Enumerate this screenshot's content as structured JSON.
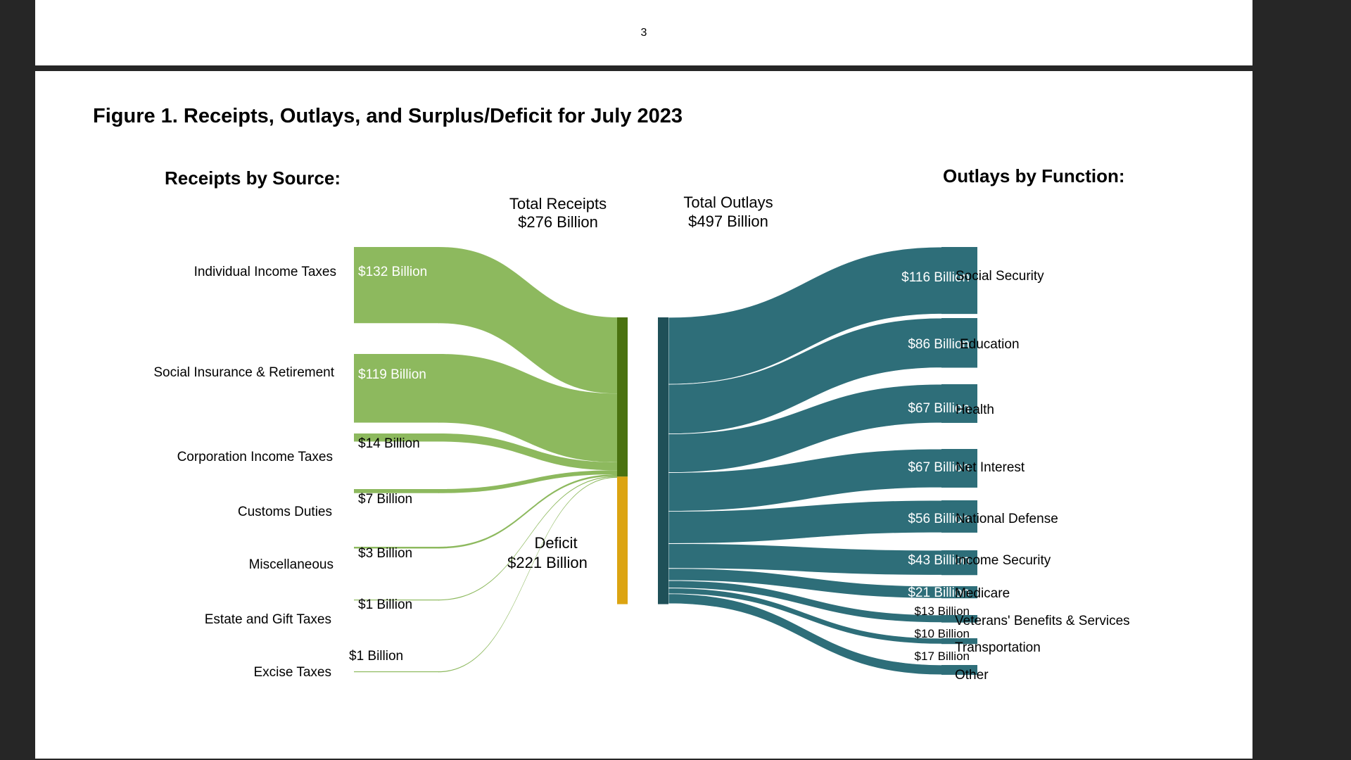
{
  "page": {
    "number": "3"
  },
  "figure": {
    "title": "Figure 1. Receipts, Outlays, and Surplus/Deficit for July 2023"
  },
  "chart_data": {
    "type": "sankey",
    "unit": "$ Billion",
    "receipts_heading": "Receipts by Source:",
    "outlays_heading": "Outlays by Function:",
    "total_receipts": {
      "label": "Total Receipts",
      "value_label": "$276 Billion",
      "value": 276
    },
    "total_outlays": {
      "label": "Total Outlays",
      "value_label": "$497 Billion",
      "value": 497
    },
    "deficit": {
      "label": "Deficit",
      "value_label": "$221 Billion",
      "value": 221
    },
    "receipts": [
      {
        "name": "Individual Income Taxes",
        "value": 132,
        "value_label": "$132 Billion"
      },
      {
        "name": "Social Insurance & Retirement",
        "value": 119,
        "value_label": "$119 Billion"
      },
      {
        "name": "Corporation Income Taxes",
        "value": 14,
        "value_label": "$14 Billion"
      },
      {
        "name": "Customs Duties",
        "value": 7,
        "value_label": "$7 Billion"
      },
      {
        "name": "Miscellaneous",
        "value": 3,
        "value_label": "$3 Billion"
      },
      {
        "name": "Estate and Gift Taxes",
        "value": 1,
        "value_label": "$1 Billion"
      },
      {
        "name": "Excise Taxes",
        "value": 1,
        "value_label": "$1 Billion"
      }
    ],
    "outlays": [
      {
        "name": "Social Security",
        "value": 116,
        "value_label": "$116 Billion"
      },
      {
        "name": "Education",
        "value": 86,
        "value_label": "$86 Billion"
      },
      {
        "name": "Health",
        "value": 67,
        "value_label": "$67 Billion"
      },
      {
        "name": "Net Interest",
        "value": 67,
        "value_label": "$67 Billion"
      },
      {
        "name": "National Defense",
        "value": 56,
        "value_label": "$56 Billion"
      },
      {
        "name": "Income Security",
        "value": 43,
        "value_label": "$43 Billion"
      },
      {
        "name": "Medicare",
        "value": 21,
        "value_label": "$21 Billion"
      },
      {
        "name": "Veterans' Benefits & Services",
        "value": 13,
        "value_label": "$13 Billion"
      },
      {
        "name": "Transportation",
        "value": 10,
        "value_label": "$10 Billion"
      },
      {
        "name": "Other",
        "value": 17,
        "value_label": "$17 Billion"
      }
    ],
    "colors": {
      "receipts_flow": "#8db95e",
      "receipts_bar": "#4a7210",
      "deficit_bar": "#dca412",
      "outlays_flow": "#2e6e79",
      "outlays_bar": "#1f5058"
    }
  }
}
